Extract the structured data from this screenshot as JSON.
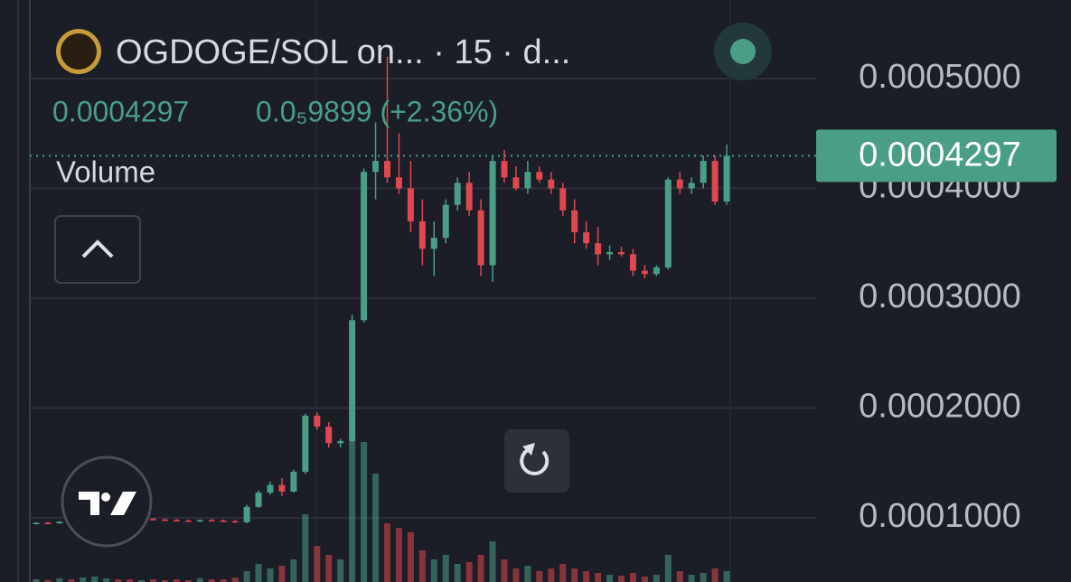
{
  "header": {
    "title": "OGDOGE/SOL on... · 15 · d...",
    "price": "0.0004297",
    "change": "0.0₅9899 (+2.36%)",
    "volume_label": "Volume"
  },
  "chart_data": {
    "type": "candlestick",
    "up_color": "#4a9e86",
    "down_color": "#e0474f",
    "open": [
      9.5e-05,
      9.55e-05,
      9.5e-05,
      9.65e-05,
      9.6e-05,
      9.8e-05,
      0.0001005,
      0.000101,
      9.9e-05,
      9.8e-05,
      9.9e-05,
      9.85e-05,
      9.8e-05,
      9.75e-05,
      9.7e-05,
      9.8e-05,
      9.75e-05,
      9.7e-05,
      9.6e-05,
      0.00011,
      0.000123,
      0.00013,
      0.000124,
      0.000142,
      0.000193,
      0.000183,
      0.000168,
      0.00017,
      0.00028,
      0.000415,
      0.000425,
      0.00041,
      0.0004,
      0.00037,
      0.000345,
      0.000355,
      0.000385,
      0.000405,
      0.00038,
      0.00033,
      0.000425,
      0.00041,
      0.0004,
      0.000415,
      0.000408,
      0.0004,
      0.00038,
      0.00036,
      0.00035,
      0.00034,
      0.000342,
      0.00034,
      0.000325,
      0.000322,
      0.000328,
      0.000408,
      0.0004,
      0.000405,
      0.000425,
      0.000388
    ],
    "high": [
      9.6e-05,
      9.65e-05,
      9.7e-05,
      9.75e-05,
      9.85e-05,
      0.000101,
      0.0001025,
      0.000102,
      0.0001,
      9.95e-05,
      0.0001,
      9.95e-05,
      9.9e-05,
      9.85e-05,
      9.85e-05,
      9.9e-05,
      9.85e-05,
      9.8e-05,
      0.000112,
      0.000125,
      0.000133,
      0.000136,
      0.000144,
      0.000195,
      0.000196,
      0.000187,
      0.000172,
      0.000285,
      0.000418,
      0.00046,
      0.00052,
      0.00045,
      0.000425,
      0.00039,
      0.00037,
      0.00039,
      0.00041,
      0.000415,
      0.00039,
      0.00043,
      0.000435,
      0.00042,
      0.000425,
      0.00042,
      0.000415,
      0.000405,
      0.00039,
      0.00037,
      0.000365,
      0.000348,
      0.000347,
      0.000345,
      0.00033,
      0.00033,
      0.00041,
      0.000415,
      0.00041,
      0.00043,
      0.00043,
      0.00044
    ],
    "low": [
      9.4e-05,
      9.45e-05,
      9.45e-05,
      9.55e-05,
      9.55e-05,
      9.75e-05,
      9.95e-05,
      9.85e-05,
      9.75e-05,
      9.7e-05,
      9.8e-05,
      9.75e-05,
      9.7e-05,
      9.65e-05,
      9.6e-05,
      9.7e-05,
      9.65e-05,
      9.55e-05,
      9.5e-05,
      0.000109,
      0.000121,
      0.00012,
      0.000123,
      0.00014,
      0.00018,
      0.000164,
      0.000164,
      0.000169,
      0.000278,
      0.00039,
      0.000405,
      0.000395,
      0.00036,
      0.00033,
      0.00032,
      0.00035,
      0.00038,
      0.000375,
      0.00032,
      0.000315,
      0.000405,
      0.000398,
      0.000395,
      0.000405,
      0.000395,
      0.000375,
      0.00035,
      0.000345,
      0.00033,
      0.000335,
      0.000338,
      0.00032,
      0.000318,
      0.00032,
      0.000326,
      0.000395,
      0.000395,
      0.0004,
      0.000385,
      0.000385
    ],
    "close": [
      9.55e-05,
      9.5e-05,
      9.65e-05,
      9.6e-05,
      9.8e-05,
      0.0001005,
      0.000101,
      9.9e-05,
      9.8e-05,
      9.9e-05,
      9.85e-05,
      9.8e-05,
      9.75e-05,
      9.7e-05,
      9.8e-05,
      9.75e-05,
      9.7e-05,
      9.6e-05,
      0.00011,
      0.000123,
      0.00013,
      0.000124,
      0.000142,
      0.000193,
      0.000183,
      0.000168,
      0.00017,
      0.00028,
      0.000415,
      0.000425,
      0.00041,
      0.0004,
      0.00037,
      0.000345,
      0.000355,
      0.000385,
      0.000405,
      0.00038,
      0.00033,
      0.000425,
      0.00041,
      0.0004,
      0.000415,
      0.000408,
      0.0004,
      0.00038,
      0.00036,
      0.00035,
      0.00034,
      0.000342,
      0.00034,
      0.000325,
      0.000322,
      0.000328,
      0.000408,
      0.0004,
      0.000405,
      0.000425,
      0.000388,
      0.0004297
    ],
    "volume": [
      3,
      2,
      4,
      3,
      5,
      6,
      4,
      3,
      3,
      2,
      3,
      2,
      3,
      2,
      4,
      3,
      3,
      5,
      12,
      20,
      15,
      18,
      25,
      75,
      40,
      30,
      25,
      160,
      155,
      120,
      65,
      60,
      55,
      35,
      25,
      30,
      20,
      22,
      30,
      45,
      25,
      15,
      18,
      12,
      15,
      20,
      15,
      12,
      10,
      8,
      7,
      10,
      6,
      8,
      30,
      12,
      8,
      10,
      15,
      12
    ],
    "ylim": [
      4.16e-05,
      0.0005715
    ],
    "yticks": [
      {
        "value": 0.0001,
        "label": "0.0001000"
      },
      {
        "value": 0.0002,
        "label": "0.0002000"
      },
      {
        "value": 0.0003,
        "label": "0.0003000"
      },
      {
        "value": 0.0004,
        "label": "0.0004000"
      },
      {
        "value": 0.0005,
        "label": "0.0005000"
      }
    ],
    "last_price": {
      "value": 0.0004297,
      "label": "0.0004297"
    },
    "grid": true
  }
}
